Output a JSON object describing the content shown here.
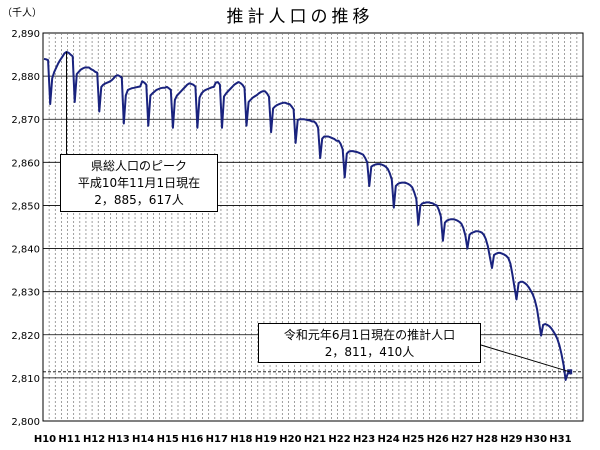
{
  "chart_data": {
    "type": "line",
    "title": "推計人口の推移",
    "unit_label": "（千人）",
    "xlabel": "",
    "ylabel": "",
    "ylim": [
      2800,
      2890
    ],
    "yticks": [
      "2,800",
      "2,810",
      "2,820",
      "2,830",
      "2,840",
      "2,850",
      "2,860",
      "2,870",
      "2,880",
      "2,890"
    ],
    "xticks": [
      "H10",
      "H11",
      "H12",
      "H13",
      "H14",
      "H15",
      "H16",
      "H17",
      "H18",
      "H19",
      "H20",
      "H21",
      "H22",
      "H23",
      "H24",
      "H25",
      "H26",
      "H27",
      "H28",
      "H29",
      "H30",
      "H31"
    ],
    "grid": true,
    "series": [
      {
        "name": "",
        "color": "#1a237e",
        "yearly": [
          {
            "year": "H10",
            "values": [
              2884.0,
              2883.9,
              2883.7,
              2873.5,
              2879.5,
              2881.0,
              2882.0,
              2883.0,
              2883.8,
              2884.5,
              2885.3,
              2885.617
            ]
          },
          {
            "year": "H11",
            "values": [
              2885.4,
              2885.0,
              2884.6,
              2874.0,
              2880.5,
              2881.0,
              2881.5,
              2881.8,
              2882.0,
              2882.0,
              2882.0,
              2881.6
            ]
          },
          {
            "year": "H12",
            "values": [
              2881.4,
              2881.0,
              2880.8,
              2871.8,
              2877.5,
              2878.0,
              2878.3,
              2878.5,
              2878.7,
              2879.0,
              2879.5,
              2880.0
            ]
          },
          {
            "year": "H13",
            "values": [
              2880.2,
              2880.0,
              2879.6,
              2869.0,
              2875.5,
              2876.8,
              2877.0,
              2877.2,
              2877.3,
              2877.4,
              2877.5,
              2877.6
            ]
          },
          {
            "year": "H14",
            "values": [
              2878.8,
              2878.5,
              2878.0,
              2868.5,
              2875.5,
              2876.0,
              2876.4,
              2876.8,
              2877.0,
              2877.2,
              2877.3,
              2877.3
            ]
          },
          {
            "year": "H15",
            "values": [
              2877.5,
              2877.2,
              2876.8,
              2868.0,
              2874.5,
              2875.5,
              2876.0,
              2876.5,
              2877.0,
              2877.5,
              2878.0,
              2878.3
            ]
          },
          {
            "year": "H16",
            "values": [
              2878.2,
              2878.0,
              2877.6,
              2868.0,
              2875.0,
              2876.0,
              2876.5,
              2876.8,
              2877.0,
              2877.2,
              2877.4,
              2877.5
            ]
          },
          {
            "year": "H17",
            "values": [
              2878.5,
              2878.6,
              2878.0,
              2868.0,
              2875.3,
              2876.0,
              2876.5,
              2877.0,
              2877.5,
              2878.0,
              2878.3,
              2878.6
            ]
          },
          {
            "year": "H18",
            "values": [
              2878.4,
              2878.0,
              2877.3,
              2868.5,
              2874.0,
              2874.5,
              2875.0,
              2875.3,
              2875.6,
              2876.0,
              2876.3,
              2876.5
            ]
          },
          {
            "year": "H19",
            "values": [
              2876.5,
              2876.0,
              2875.2,
              2867.0,
              2872.5,
              2873.0,
              2873.3,
              2873.5,
              2873.7,
              2873.8,
              2873.8,
              2873.6
            ]
          },
          {
            "year": "H20",
            "values": [
              2873.5,
              2873.0,
              2872.3,
              2864.5,
              2869.8,
              2870.0,
              2870.0,
              2870.0,
              2869.9,
              2869.8,
              2869.7,
              2869.5
            ]
          },
          {
            "year": "H21",
            "values": [
              2869.5,
              2869.0,
              2868.0,
              2861.0,
              2865.5,
              2866.0,
              2866.0,
              2866.0,
              2865.8,
              2865.6,
              2865.4,
              2865.0
            ]
          },
          {
            "year": "H22",
            "values": [
              2865.0,
              2864.3,
              2863.0,
              2856.5,
              2862.0,
              2862.5,
              2862.6,
              2862.6,
              2862.5,
              2862.4,
              2862.2,
              2862.0
            ]
          },
          {
            "year": "H23",
            "values": [
              2861.8,
              2861.0,
              2860.0,
              2854.5,
              2859.0,
              2859.3,
              2859.5,
              2859.6,
              2859.6,
              2859.5,
              2859.3,
              2859.0
            ]
          },
          {
            "year": "H24",
            "values": [
              2858.5,
              2857.5,
              2856.0,
              2849.5,
              2854.5,
              2855.0,
              2855.2,
              2855.3,
              2855.3,
              2855.2,
              2855.0,
              2854.7
            ]
          },
          {
            "year": "H25",
            "values": [
              2854.2,
              2853.0,
              2851.5,
              2845.5,
              2850.0,
              2850.5,
              2850.6,
              2850.7,
              2850.7,
              2850.6,
              2850.5,
              2850.2
            ]
          },
          {
            "year": "H26",
            "values": [
              2850.0,
              2849.0,
              2847.5,
              2841.8,
              2846.0,
              2846.5,
              2846.7,
              2846.8,
              2846.8,
              2846.7,
              2846.5,
              2846.2
            ]
          },
          {
            "year": "H27",
            "values": [
              2845.8,
              2844.8,
              2843.0,
              2840.0,
              2843.2,
              2843.6,
              2843.8,
              2844.0,
              2844.0,
              2843.9,
              2843.7,
              2843.2
            ]
          },
          {
            "year": "H28",
            "values": [
              2842.2,
              2840.5,
              2838.0,
              2835.5,
              2838.5,
              2838.8,
              2839.0,
              2839.0,
              2838.8,
              2838.6,
              2838.3,
              2837.8
            ]
          },
          {
            "year": "H29",
            "values": [
              2836.5,
              2834.0,
              2831.0,
              2828.2,
              2832.0,
              2832.3,
              2832.3,
              2832.0,
              2831.6,
              2831.0,
              2830.2,
              2829.3
            ]
          },
          {
            "year": "H30",
            "values": [
              2828.0,
              2826.0,
              2823.0,
              2819.8,
              2822.3,
              2822.5,
              2822.3,
              2822.0,
              2821.5,
              2820.8,
              2820.0,
              2819.0
            ]
          },
          {
            "year": "H31",
            "values": [
              2817.5,
              2815.5,
              2813.0,
              2809.5,
              2811.0,
              2811.41
            ]
          }
        ]
      }
    ],
    "annotations": [
      {
        "lines": [
          "県総人口のピーク",
          "平成10年11月1日現在",
          "2，885，617人"
        ]
      },
      {
        "lines": [
          "令和元年6月1日現在の推計人口",
          "2，811，410人"
        ]
      }
    ],
    "reference_line_value": 2811.41
  }
}
